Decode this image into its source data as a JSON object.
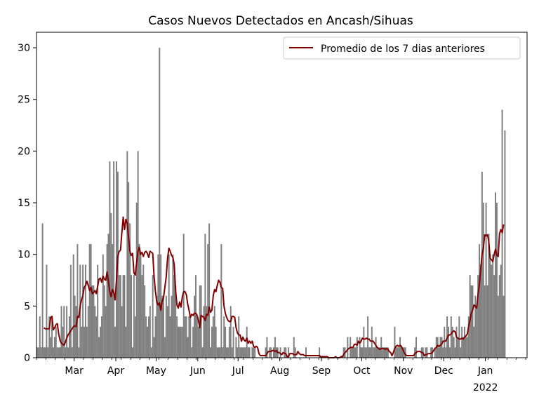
{
  "chart_data": {
    "type": "bar",
    "title": "Casos Nuevos Detectados en Ancash/Sihuas",
    "xlabel": "",
    "ylabel": "",
    "ylim": [
      0,
      31.5
    ],
    "yticks": [
      0,
      5,
      10,
      15,
      20,
      25,
      30
    ],
    "xlim": [
      "2021-02-01",
      "2022-01-31"
    ],
    "month_ticks": [
      {
        "date": "2021-03-01",
        "label": "Mar"
      },
      {
        "date": "2021-04-01",
        "label": "Apr"
      },
      {
        "date": "2021-05-01",
        "label": "May"
      },
      {
        "date": "2021-06-01",
        "label": "Jun"
      },
      {
        "date": "2021-07-01",
        "label": "Jul"
      },
      {
        "date": "2021-08-01",
        "label": "Aug"
      },
      {
        "date": "2021-09-01",
        "label": "Sep"
      },
      {
        "date": "2021-10-01",
        "label": "Oct"
      },
      {
        "date": "2021-11-01",
        "label": "Nov"
      },
      {
        "date": "2021-12-01",
        "label": "Dec"
      },
      {
        "date": "2022-01-01",
        "label": "Jan",
        "sublabel": "2022"
      }
    ],
    "grid": false,
    "legend_position": "top-right",
    "bar_color": "#808080",
    "series": [
      {
        "type": "bar",
        "start_date": "2021-02-01",
        "values": [
          1,
          1,
          4,
          1,
          13,
          1,
          1,
          9,
          1,
          4,
          2,
          4,
          1,
          2,
          3,
          1,
          1,
          1,
          5,
          3,
          5,
          1,
          5,
          1,
          4,
          9,
          1,
          10,
          6,
          5,
          11,
          1,
          9,
          3,
          9,
          3,
          9,
          3,
          5,
          11,
          11,
          7,
          7,
          5,
          4,
          9,
          2,
          3,
          4,
          10,
          7,
          5,
          11,
          12,
          19,
          14,
          11,
          19,
          3,
          19,
          18,
          8,
          8,
          5,
          8,
          8,
          3,
          20,
          17,
          13,
          8,
          1,
          8,
          4,
          15,
          20,
          11,
          10,
          8,
          9,
          7,
          4,
          3,
          4,
          5,
          1,
          8,
          2,
          4,
          6,
          10,
          30,
          10,
          6,
          6,
          2,
          6,
          5,
          10,
          4,
          6,
          10,
          8,
          7,
          4,
          3,
          3,
          3,
          3,
          12,
          4,
          4,
          2,
          4,
          4,
          1,
          3,
          6,
          8,
          4,
          3,
          7,
          7,
          1,
          5,
          12,
          5,
          11,
          13,
          1,
          3,
          4,
          5,
          3,
          1,
          1,
          1,
          11,
          1,
          4,
          3,
          1,
          1,
          3,
          5,
          1,
          3,
          0,
          2,
          1,
          4,
          1,
          1,
          1,
          1,
          1,
          3,
          1,
          1,
          0,
          1,
          1,
          1,
          0,
          0,
          0,
          0,
          0,
          0,
          0,
          1,
          2,
          0,
          1,
          1,
          0,
          1,
          2,
          1,
          1,
          0,
          1,
          0,
          0,
          1,
          1,
          0,
          1,
          0,
          0,
          0,
          2,
          1,
          0,
          0,
          0,
          0,
          0,
          0,
          0,
          1,
          0,
          0,
          0,
          0,
          0,
          0,
          0,
          0,
          0,
          1,
          0,
          0,
          0,
          0,
          0,
          0,
          0,
          0,
          0,
          0,
          0,
          0,
          0,
          0,
          0,
          0,
          0,
          1,
          1,
          0,
          2,
          0,
          2,
          1,
          1,
          1,
          1,
          2,
          0,
          2,
          1,
          1,
          3,
          1,
          1,
          4,
          1,
          1,
          3,
          1,
          1,
          2,
          1,
          1,
          1,
          2,
          1,
          1,
          1,
          1,
          1,
          0,
          0,
          0,
          0,
          3,
          1,
          1,
          1,
          2,
          1,
          1,
          1,
          1,
          0,
          0,
          0,
          0,
          0,
          0,
          1,
          2,
          0,
          0,
          0,
          1,
          1,
          0,
          1,
          1,
          0,
          0,
          1,
          1,
          0,
          1,
          2,
          2,
          1,
          2,
          2,
          1,
          3,
          1,
          4,
          3,
          1,
          4,
          3,
          2,
          1,
          3,
          2,
          4,
          1,
          3,
          2,
          3,
          2,
          2,
          4,
          8,
          7,
          7,
          3,
          6,
          5,
          8,
          11,
          9,
          18,
          15,
          7,
          15,
          7,
          12,
          10,
          9,
          10,
          8,
          16,
          15,
          6,
          8,
          9,
          24,
          6,
          22
        ]
      },
      {
        "type": "line",
        "name": "Promedio de los 7 dias anteriores",
        "color": "#800000",
        "start_date": "2021-02-06",
        "values": [
          2.9,
          2.8,
          2.8,
          2.8,
          2.8,
          3.9,
          4.0,
          2.7,
          2.9,
          3.2,
          3.3,
          2.3,
          1.7,
          1.4,
          1.3,
          1.2,
          1.5,
          1.9,
          2.2,
          2.4,
          2.6,
          2.8,
          3.0,
          3.1,
          3.0,
          4.0,
          3.9,
          5.0,
          5.6,
          6.0,
          6.8,
          7.0,
          7.4,
          7.0,
          6.5,
          6.8,
          6.2,
          6.3,
          6.5,
          6.2,
          6.9,
          7.6,
          7.7,
          7.3,
          7.9,
          7.6,
          7.5,
          8.3,
          7.4,
          6.4,
          5.9,
          6.6,
          6.3,
          5.6,
          7.5,
          9.8,
          10.3,
          10.4,
          12.1,
          13.6,
          12.4,
          13.4,
          13.0,
          11.6,
          10.3,
          9.9,
          10.1,
          8.2,
          8.0,
          9.2,
          10.3,
          10.7,
          10.0,
          10.2,
          9.8,
          10.2,
          10.3,
          10.1,
          9.7,
          10.3,
          10.2,
          10.1,
          7.8,
          6.4,
          5.4,
          5.1,
          5.3,
          4.6,
          5.5,
          5.8,
          6.8,
          7.8,
          9.6,
          10.6,
          10.3,
          9.9,
          9.7,
          9.0,
          6.5,
          5.1,
          4.8,
          5.4,
          4.9,
          5.9,
          6.4,
          6.4,
          6.1,
          5.2,
          4.6,
          3.9,
          4.2,
          4.1,
          4.3,
          4.3,
          4.1,
          3.6,
          2.9,
          4.1,
          4.0,
          3.9,
          3.6,
          4.2,
          4.1,
          4.9,
          4.4,
          4.6,
          6.0,
          6.6,
          6.4,
          7.0,
          7.5,
          7.3,
          6.8,
          6.7,
          5.0,
          4.3,
          3.9,
          3.6,
          3.5,
          3.5,
          4.0,
          4.0,
          3.9,
          2.9,
          2.4,
          2.2,
          2.2,
          1.6,
          2.0,
          1.7,
          1.6,
          1.9,
          1.4,
          1.6,
          1.4,
          1.6,
          1.1,
          1.0,
          1.1,
          1.0,
          0.4,
          0.2,
          0.2,
          0.2,
          0.2,
          0.2,
          0.4,
          0.6,
          0.6,
          0.6,
          0.7,
          0.7,
          0.6,
          0.7,
          0.5,
          0.5,
          0.4,
          0.3,
          0.5,
          0.4,
          0.4,
          0.1,
          0.1,
          0.4,
          0.4,
          0.4,
          0.3,
          0.3,
          0.3,
          0.6,
          0.4,
          0.3,
          0.3,
          0.3,
          0.2,
          0.2,
          0.2,
          0.2,
          0.2,
          0.2,
          0.2,
          0.2,
          0.2,
          0.2,
          0.2,
          0.2,
          0.1,
          0.1,
          0.1,
          0.1,
          0.1,
          0.1,
          0.0,
          0.0,
          0.0,
          0.0,
          0.0,
          0.1,
          0.0,
          0.0,
          0.0,
          0.1,
          0.1,
          0.3,
          0.5,
          0.6,
          0.8,
          0.9,
          1.0,
          1.0,
          1.0,
          1.3,
          1.3,
          1.2,
          1.6,
          1.4,
          1.6,
          1.9,
          1.8,
          1.8,
          1.9,
          1.8,
          1.8,
          1.6,
          1.6,
          1.6,
          1.4,
          1.2,
          1.0,
          0.9,
          0.8,
          0.9,
          0.9,
          0.9,
          0.8,
          0.9,
          0.8,
          0.6,
          0.5,
          0.2,
          0.5,
          0.9,
          1.1,
          1.2,
          1.1,
          1.2,
          1.1,
          0.8,
          0.5,
          0.3,
          0.2,
          0.2,
          0.2,
          0.2,
          0.2,
          0.2,
          0.4,
          0.5,
          0.6,
          0.6,
          0.6,
          0.5,
          0.5,
          0.2,
          0.3,
          0.3,
          0.4,
          0.4,
          0.4,
          0.5,
          0.7,
          0.9,
          1.0,
          1.2,
          1.1,
          1.2,
          1.3,
          1.6,
          1.6,
          1.6,
          1.9,
          2.2,
          2.2,
          2.3,
          2.5,
          2.6,
          2.5,
          2.0,
          1.9,
          1.8,
          1.8,
          1.9,
          1.8,
          2.0,
          2.1,
          2.3,
          3.0,
          3.6,
          4.3,
          4.6,
          5.1,
          5.0,
          4.8,
          6.1,
          7.1,
          8.5,
          10.0,
          10.6,
          11.9,
          11.8,
          11.9,
          11.3,
          9.6,
          9.5,
          9.3,
          10.0,
          10.5,
          9.9,
          9.8,
          12.0,
          12.4,
          12.1,
          12.9
        ]
      }
    ]
  }
}
